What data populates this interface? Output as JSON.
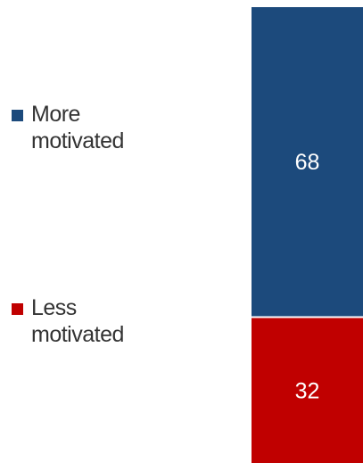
{
  "chart_data": {
    "type": "bar",
    "stacked": true,
    "categories": [
      ""
    ],
    "series": [
      {
        "name": "More motivated",
        "values": [
          68
        ],
        "color": "#1c4a7c"
      },
      {
        "name": "Less motivated",
        "values": [
          32
        ],
        "color": "#c00000"
      }
    ],
    "ylim": [
      0,
      100
    ],
    "legend": {
      "placement": "left"
    },
    "grid": false,
    "data_label_color": "#ffffff"
  }
}
